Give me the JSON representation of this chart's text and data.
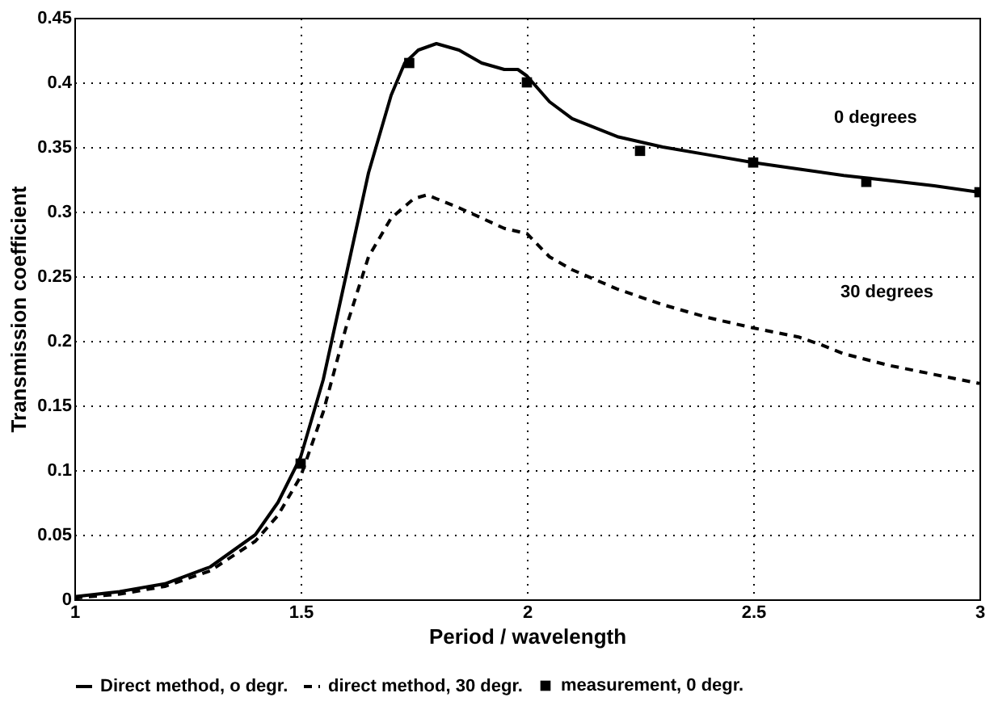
{
  "chart_data": {
    "type": "line",
    "xlabel": "Period / wavelength",
    "ylabel": "Transmission coefficient",
    "xlim": [
      1,
      3
    ],
    "xticks": [
      1,
      1.5,
      2,
      2.5,
      3
    ],
    "ylim": [
      0,
      0.45
    ],
    "yticks": [
      0,
      0.05,
      0.1,
      0.15,
      0.2,
      0.25,
      0.3,
      0.35,
      0.4,
      0.45
    ],
    "grid": true,
    "legend": "bottom",
    "series": [
      {
        "name": "Direct method, o degr.",
        "color": "#000000",
        "line_style": "solid",
        "x": [
          1.0,
          1.1,
          1.2,
          1.3,
          1.4,
          1.45,
          1.5,
          1.55,
          1.6,
          1.65,
          1.7,
          1.73,
          1.76,
          1.8,
          1.85,
          1.9,
          1.95,
          1.98,
          2.0,
          2.05,
          2.1,
          2.2,
          2.3,
          2.4,
          2.5,
          2.6,
          2.7,
          2.8,
          2.9,
          3.0
        ],
        "values": [
          0.002,
          0.006,
          0.012,
          0.025,
          0.05,
          0.075,
          0.11,
          0.17,
          0.25,
          0.33,
          0.39,
          0.415,
          0.425,
          0.43,
          0.425,
          0.415,
          0.41,
          0.41,
          0.405,
          0.385,
          0.372,
          0.358,
          0.35,
          0.344,
          0.338,
          0.333,
          0.328,
          0.324,
          0.32,
          0.315
        ]
      },
      {
        "name": "direct method, 30 degr.",
        "color": "#000000",
        "line_style": "dashed",
        "x": [
          1.0,
          1.1,
          1.2,
          1.3,
          1.4,
          1.45,
          1.5,
          1.55,
          1.6,
          1.65,
          1.7,
          1.75,
          1.78,
          1.8,
          1.85,
          1.9,
          1.95,
          2.0,
          2.05,
          2.1,
          2.2,
          2.3,
          2.4,
          2.5,
          2.6,
          2.65,
          2.7,
          2.8,
          2.9,
          3.0
        ],
        "values": [
          0.001,
          0.004,
          0.01,
          0.022,
          0.045,
          0.065,
          0.095,
          0.145,
          0.21,
          0.265,
          0.295,
          0.31,
          0.313,
          0.31,
          0.303,
          0.295,
          0.287,
          0.283,
          0.265,
          0.255,
          0.24,
          0.228,
          0.218,
          0.21,
          0.203,
          0.197,
          0.19,
          0.181,
          0.174,
          0.167
        ]
      },
      {
        "name": "measurement, 0 degr.",
        "color": "#000000",
        "type": "scatter",
        "marker": "square",
        "x": [
          1.5,
          1.74,
          2.0,
          2.25,
          2.5,
          2.75,
          3.0
        ],
        "values": [
          0.105,
          0.415,
          0.4,
          0.347,
          0.338,
          0.323,
          0.315
        ]
      }
    ],
    "annotations": [
      "0 degrees",
      "30 degrees"
    ]
  }
}
